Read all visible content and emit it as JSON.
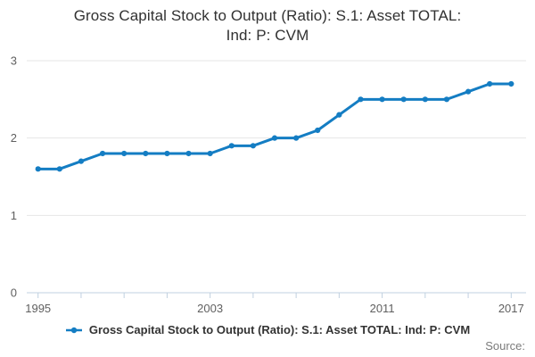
{
  "title": {
    "line1": "Gross Capital Stock to Output (Ratio): S.1: Asset TOTAL:",
    "line2": "Ind: P: CVM"
  },
  "legend": {
    "label": "Gross Capital Stock to Output (Ratio): S.1: Asset TOTAL: Ind: P: CVM",
    "marker_color": "#147dc3"
  },
  "footer": {
    "source_label": "Source:"
  },
  "chart_data": {
    "type": "line",
    "title": "Gross Capital Stock to Output (Ratio): S.1: Asset TOTAL: Ind: P: CVM",
    "series_name": "Gross Capital Stock to Output (Ratio): S.1: Asset TOTAL: Ind: P: CVM",
    "x": [
      1995,
      1996,
      1997,
      1998,
      1999,
      2000,
      2001,
      2002,
      2003,
      2004,
      2005,
      2006,
      2007,
      2008,
      2009,
      2010,
      2011,
      2012,
      2013,
      2014,
      2015,
      2016,
      2017
    ],
    "values": [
      1.6,
      1.6,
      1.7,
      1.8,
      1.8,
      1.8,
      1.8,
      1.8,
      1.8,
      1.9,
      1.9,
      2.0,
      2.0,
      2.1,
      2.3,
      2.5,
      2.5,
      2.5,
      2.5,
      2.5,
      2.6,
      2.7,
      2.7
    ],
    "xlabel": "",
    "ylabel": "",
    "ylim": [
      0,
      3
    ],
    "y_ticks": [
      0,
      1,
      2,
      3
    ],
    "x_tick_interval_years": 2,
    "x_tick_labels": [
      "1995",
      "2003",
      "2011",
      "2017"
    ],
    "grid": true,
    "legend_position": "bottom",
    "marker": "circle",
    "colors": {
      "line": "#147dc3",
      "grid": "#e6e6e6",
      "axis": "#c0d0e0",
      "labels": "#606060"
    }
  }
}
